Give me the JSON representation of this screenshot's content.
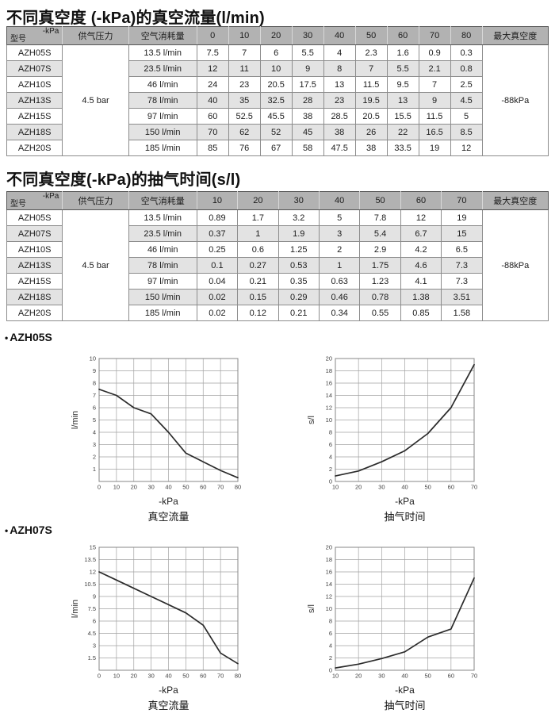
{
  "page": {
    "flow_section_title": "不同真空度 (-kPa)的真空流量(l/min)",
    "time_section_title": "不同真空度(-kPa)的抽气时间(s/l)",
    "bullet_dot": "•",
    "bullet_azh05s": "AZH05S",
    "bullet_azh07s": "AZH07S"
  },
  "colors": {
    "header_bg": "#b2b2b2",
    "alt_row_bg": "#e3e3e3",
    "table_border": "#8c8c8c",
    "grid": "#a3a3a3",
    "curve": "#2b2b2b"
  },
  "flow_table": {
    "corner_top_right": "-kPa",
    "corner_bottom_left": "型号",
    "supply_pressure_header": "供气压力",
    "consumption_header": "空气消耗量",
    "kpa_columns": [
      "0",
      "10",
      "20",
      "30",
      "40",
      "50",
      "60",
      "70",
      "80"
    ],
    "max_vacuum_header": "最大真空度",
    "supply_pressure": "4.5 bar",
    "max_vacuum": "-88kPa",
    "rows": [
      {
        "model": "AZH05S",
        "consumption": "13.5 l/min",
        "values": [
          "7.5",
          "7",
          "6",
          "5.5",
          "4",
          "2.3",
          "1.6",
          "0.9",
          "0.3"
        ]
      },
      {
        "model": "AZH07S",
        "consumption": "23.5 l/min",
        "values": [
          "12",
          "11",
          "10",
          "9",
          "8",
          "7",
          "5.5",
          "2.1",
          "0.8"
        ]
      },
      {
        "model": "AZH10S",
        "consumption": "46 l/min",
        "values": [
          "24",
          "23",
          "20.5",
          "17.5",
          "13",
          "11.5",
          "9.5",
          "7",
          "2.5"
        ]
      },
      {
        "model": "AZH13S",
        "consumption": "78 l/min",
        "values": [
          "40",
          "35",
          "32.5",
          "28",
          "23",
          "19.5",
          "13",
          "9",
          "4.5"
        ]
      },
      {
        "model": "AZH15S",
        "consumption": "97 l/min",
        "values": [
          "60",
          "52.5",
          "45.5",
          "38",
          "28.5",
          "20.5",
          "15.5",
          "11.5",
          "5"
        ]
      },
      {
        "model": "AZH18S",
        "consumption": "150 l/min",
        "values": [
          "70",
          "62",
          "52",
          "45",
          "38",
          "26",
          "22",
          "16.5",
          "8.5"
        ]
      },
      {
        "model": "AZH20S",
        "consumption": "185 l/min",
        "values": [
          "85",
          "76",
          "67",
          "58",
          "47.5",
          "38",
          "33.5",
          "19",
          "12"
        ]
      }
    ]
  },
  "time_table": {
    "corner_top_right": "-kPa",
    "corner_bottom_left": "型号",
    "supply_pressure_header": "供气压力",
    "consumption_header": "空气消耗量",
    "kpa_columns": [
      "10",
      "20",
      "30",
      "40",
      "50",
      "60",
      "70"
    ],
    "max_vacuum_header": "最大真空度",
    "supply_pressure": "4.5 bar",
    "max_vacuum": "-88kPa",
    "rows": [
      {
        "model": "AZH05S",
        "consumption": "13.5 l/min",
        "values": [
          "0.89",
          "1.7",
          "3.2",
          "5",
          "7.8",
          "12",
          "19"
        ]
      },
      {
        "model": "AZH07S",
        "consumption": "23.5 l/min",
        "values": [
          "0.37",
          "1",
          "1.9",
          "3",
          "5.4",
          "6.7",
          "15"
        ]
      },
      {
        "model": "AZH10S",
        "consumption": "46 l/min",
        "values": [
          "0.25",
          "0.6",
          "1.25",
          "2",
          "2.9",
          "4.2",
          "6.5"
        ]
      },
      {
        "model": "AZH13S",
        "consumption": "78 l/min",
        "values": [
          "0.1",
          "0.27",
          "0.53",
          "1",
          "1.75",
          "4.6",
          "7.3"
        ]
      },
      {
        "model": "AZH15S",
        "consumption": "97 l/min",
        "values": [
          "0.04",
          "0.21",
          "0.35",
          "0.63",
          "1.23",
          "4.1",
          "7.3"
        ]
      },
      {
        "model": "AZH18S",
        "consumption": "150 l/min",
        "values": [
          "0.02",
          "0.15",
          "0.29",
          "0.46",
          "0.78",
          "1.38",
          "3.51"
        ]
      },
      {
        "model": "AZH20S",
        "consumption": "185 l/min",
        "values": [
          "0.02",
          "0.12",
          "0.21",
          "0.34",
          "0.55",
          "0.85",
          "1.58"
        ]
      }
    ]
  },
  "chart_data": [
    {
      "id": "azh05s-flow",
      "type": "line",
      "model": "AZH05S",
      "title": "真空流量",
      "xlabel": "-kPa",
      "ylabel": "l/min",
      "xlim": [
        0,
        80
      ],
      "ylim": [
        0,
        10
      ],
      "grid": true,
      "x_ticks": [
        0,
        10,
        20,
        30,
        40,
        50,
        60,
        70,
        80
      ],
      "y_ticks": [
        1,
        2,
        3,
        4,
        5,
        6,
        7,
        8,
        9,
        10
      ],
      "x": [
        0,
        10,
        20,
        30,
        40,
        50,
        60,
        70,
        80
      ],
      "y": [
        7.5,
        7,
        6,
        5.5,
        4,
        2.3,
        1.6,
        0.9,
        0.3
      ]
    },
    {
      "id": "azh05s-time",
      "type": "line",
      "model": "AZH05S",
      "title": "抽气时间",
      "xlabel": "-kPa",
      "ylabel": "s/l",
      "xlim": [
        10,
        70
      ],
      "ylim": [
        0,
        20
      ],
      "grid": true,
      "x_ticks": [
        10,
        20,
        30,
        40,
        50,
        60,
        70
      ],
      "y_ticks": [
        0,
        2,
        4,
        6,
        8,
        10,
        12,
        14,
        16,
        18,
        20
      ],
      "x": [
        10,
        20,
        30,
        40,
        50,
        60,
        70
      ],
      "y": [
        0.89,
        1.7,
        3.2,
        5,
        7.8,
        12,
        19
      ]
    },
    {
      "id": "azh07s-flow",
      "type": "line",
      "model": "AZH07S",
      "title": "真空流量",
      "xlabel": "-kPa",
      "ylabel": "l/min",
      "xlim": [
        0,
        80
      ],
      "ylim": [
        0,
        15
      ],
      "grid": true,
      "x_ticks": [
        0,
        10,
        20,
        30,
        40,
        50,
        60,
        70,
        80
      ],
      "y_ticks": [
        1.5,
        3,
        4.5,
        6,
        7.5,
        9,
        10.5,
        12,
        13.5,
        15
      ],
      "x": [
        0,
        10,
        20,
        30,
        40,
        50,
        60,
        70,
        80
      ],
      "y": [
        12,
        11,
        10,
        9,
        8,
        7,
        5.5,
        2.1,
        0.8
      ]
    },
    {
      "id": "azh07s-time",
      "type": "line",
      "model": "AZH07S",
      "title": "抽气时间",
      "xlabel": "-kPa",
      "ylabel": "s/l",
      "xlim": [
        10,
        70
      ],
      "ylim": [
        0,
        20
      ],
      "grid": true,
      "x_ticks": [
        10,
        20,
        30,
        40,
        50,
        60,
        70
      ],
      "y_ticks": [
        0,
        2,
        4,
        6,
        8,
        10,
        12,
        14,
        16,
        18,
        20
      ],
      "x": [
        10,
        20,
        30,
        40,
        50,
        60,
        70
      ],
      "y": [
        0.37,
        1,
        1.9,
        3,
        5.4,
        6.7,
        15
      ]
    }
  ]
}
